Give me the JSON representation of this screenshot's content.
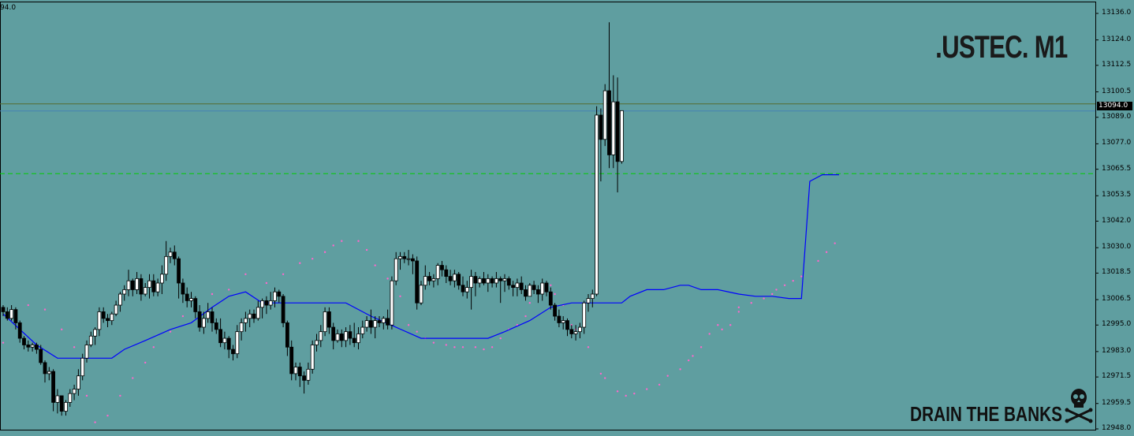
{
  "chart_data": {
    "type": "candlestick",
    "title": ".USTEC. M1",
    "symbol": ".USTEC",
    "timeframe": "M1",
    "top_left_label": "94.0",
    "current_price_label": "13094.0",
    "current_price": 13094.0,
    "green_dashed_level": 13063.5,
    "ylim": [
      12946,
      13141
    ],
    "y_ticks": [
      "13136.0",
      "13124.0",
      "13112.5",
      "13100.5",
      "13089.0",
      "13077.0",
      "13065.5",
      "13053.5",
      "13042.0",
      "13030.0",
      "13018.5",
      "13006.5",
      "12995.0",
      "12983.0",
      "12971.5",
      "12959.5",
      "12948.0"
    ],
    "indicators": [
      "parabolic-sar",
      "blue-line"
    ],
    "colors": {
      "background": "#5f9ea0",
      "bull_candle": "#ffffff",
      "bear_candle": "#000000",
      "sar_dots": "#ff66cc",
      "indicator_line": "#0000ff",
      "dashed_level": "#00cc00",
      "price_line": "#556b2f",
      "current_level": "#4682b4"
    },
    "candles": [
      [
        13003,
        13004,
        12999,
        13001
      ],
      [
        13001,
        13003,
        12997,
        12998
      ],
      [
        12998,
        13004,
        12997,
        13002
      ],
      [
        13002,
        13003,
        12993,
        12996
      ],
      [
        12996,
        12997,
        12987,
        12989
      ],
      [
        12989,
        12990,
        12984,
        12986
      ],
      [
        12986,
        12988,
        12983,
        12985
      ],
      [
        12985,
        12987,
        12983,
        12986
      ],
      [
        12986,
        12987,
        12982,
        12984
      ],
      [
        12984,
        12986,
        12977,
        12978
      ],
      [
        12978,
        12979,
        12969,
        12973
      ],
      [
        12973,
        12976,
        12970,
        12974
      ],
      [
        12974,
        12975,
        12956,
        12960
      ],
      [
        12960,
        12966,
        12955,
        12963
      ],
      [
        12963,
        12963,
        12954,
        12956
      ],
      [
        12956,
        12961,
        12954,
        12960
      ],
      [
        12960,
        12966,
        12958,
        12964
      ],
      [
        12964,
        12968,
        12961,
        12966
      ],
      [
        12966,
        12975,
        12963,
        12972
      ],
      [
        12972,
        12982,
        12970,
        12980
      ],
      [
        12980,
        12988,
        12978,
        12986
      ],
      [
        12986,
        12992,
        12985,
        12990
      ],
      [
        12990,
        12994,
        12986,
        12993
      ],
      [
        12993,
        13003,
        12990,
        13001
      ],
      [
        13001,
        13003,
        12996,
        12998
      ],
      [
        12998,
        13000,
        12994,
        12997
      ],
      [
        12997,
        13001,
        12995,
        13000
      ],
      [
        13000,
        13006,
        12999,
        13004
      ],
      [
        13004,
        13010,
        13001,
        13009
      ],
      [
        13009,
        13013,
        13006,
        13011
      ],
      [
        13011,
        13020,
        13008,
        13015
      ],
      [
        13015,
        13016,
        13008,
        13011
      ],
      [
        13011,
        13019,
        13009,
        13016
      ],
      [
        13016,
        13018,
        13006,
        13009
      ],
      [
        13009,
        13014,
        13008,
        13012
      ],
      [
        13012,
        13018,
        13007,
        13015
      ],
      [
        13015,
        13018,
        13008,
        13010
      ],
      [
        13010,
        13016,
        13008,
        13014
      ],
      [
        13014,
        13022,
        13009,
        13018
      ],
      [
        13018,
        13033,
        13015,
        13026
      ],
      [
        13026,
        13030,
        13023,
        13028
      ],
      [
        13028,
        13031,
        13022,
        13025
      ],
      [
        13025,
        13026,
        13007,
        13014
      ],
      [
        13014,
        13016,
        13005,
        13009
      ],
      [
        13009,
        13012,
        13003,
        13006
      ],
      [
        13006,
        13010,
        13003,
        13007
      ],
      [
        13007,
        13008,
        12998,
        13001
      ],
      [
        13001,
        13004,
        12992,
        12994
      ],
      [
        12994,
        13001,
        12991,
        12998
      ],
      [
        12998,
        13005,
        12996,
        13001
      ],
      [
        13001,
        13003,
        12992,
        12996
      ],
      [
        12996,
        12998,
        12991,
        12993
      ],
      [
        12993,
        12998,
        12985,
        12987
      ],
      [
        12987,
        12992,
        12984,
        12989
      ],
      [
        12989,
        12990,
        12980,
        12984
      ],
      [
        12984,
        12986,
        12979,
        12982
      ],
      [
        12982,
        12995,
        12980,
        12992
      ],
      [
        12992,
        12998,
        12988,
        12996
      ],
      [
        12996,
        13001,
        12992,
        12998
      ],
      [
        12998,
        13002,
        12994,
        13000
      ],
      [
        13000,
        13002,
        12996,
        12998
      ],
      [
        12998,
        13006,
        12997,
        13003
      ],
      [
        13003,
        13007,
        12998,
        13006
      ],
      [
        13006,
        13008,
        13000,
        13004
      ],
      [
        13004,
        13010,
        13002,
        13006
      ],
      [
        13006,
        13012,
        13003,
        13010
      ],
      [
        13010,
        13011,
        13005,
        13008
      ],
      [
        13008,
        13009,
        12994,
        12996
      ],
      [
        12996,
        12997,
        12981,
        12985
      ],
      [
        12985,
        12988,
        12970,
        12973
      ],
      [
        12973,
        12978,
        12970,
        12976
      ],
      [
        12976,
        12978,
        12967,
        12972
      ],
      [
        12972,
        12974,
        12964,
        12970
      ],
      [
        12970,
        12978,
        12968,
        12975
      ],
      [
        12975,
        12988,
        12973,
        12986
      ],
      [
        12986,
        12991,
        12983,
        12988
      ],
      [
        12988,
        12995,
        12985,
        12992
      ],
      [
        12992,
        13003,
        12990,
        13001
      ],
      [
        13001,
        13003,
        12991,
        12994
      ],
      [
        12994,
        12996,
        12984,
        12988
      ],
      [
        12988,
        12993,
        12987,
        12991
      ],
      [
        12991,
        12993,
        12985,
        12988
      ],
      [
        12988,
        12994,
        12985,
        12992
      ],
      [
        12992,
        12995,
        12986,
        12989
      ],
      [
        12989,
        12996,
        12985,
        12987
      ],
      [
        12987,
        12994,
        12984,
        12991
      ],
      [
        12991,
        12997,
        12989,
        12994
      ],
      [
        12994,
        12999,
        12992,
        12997
      ],
      [
        12997,
        13002,
        12991,
        12994
      ],
      [
        12994,
        12999,
        12989,
        12997
      ],
      [
        12997,
        12999,
        12994,
        12996
      ],
      [
        12996,
        12999,
        12993,
        12998
      ],
      [
        12998,
        13002,
        12993,
        12995
      ],
      [
        12995,
        13017,
        12993,
        13015
      ],
      [
        13015,
        13028,
        13013,
        13025
      ],
      [
        13025,
        13028,
        13020,
        13026
      ],
      [
        13026,
        13028,
        13023,
        13025
      ],
      [
        13025,
        13029,
        13022,
        13025
      ],
      [
        13025,
        13027,
        13018,
        13024
      ],
      [
        13024,
        13026,
        13002,
        13005
      ],
      [
        13005,
        13015,
        13004,
        13013
      ],
      [
        13013,
        13022,
        13011,
        13017
      ],
      [
        13017,
        13019,
        13013,
        13015
      ],
      [
        13015,
        13018,
        13012,
        13016
      ],
      [
        13016,
        13023,
        13013,
        13022
      ],
      [
        13022,
        13024,
        13017,
        13020
      ],
      [
        13020,
        13022,
        13014,
        13017
      ],
      [
        13017,
        13020,
        13013,
        13015
      ],
      [
        13015,
        13020,
        13012,
        13018
      ],
      [
        13018,
        13019,
        13011,
        13013
      ],
      [
        13013,
        13017,
        13008,
        13010
      ],
      [
        13010,
        13015,
        13007,
        13012
      ],
      [
        13012,
        13020,
        13002,
        13017
      ],
      [
        13017,
        13019,
        13008,
        13014
      ],
      [
        13014,
        13017,
        13012,
        13016
      ],
      [
        13016,
        13019,
        13013,
        13014
      ],
      [
        13014,
        13018,
        13010,
        13016
      ],
      [
        13016,
        13017,
        13012,
        13014
      ],
      [
        13014,
        13019,
        13012,
        13016
      ],
      [
        13016,
        13017,
        13005,
        13015
      ],
      [
        13015,
        13018,
        13010,
        13016
      ],
      [
        13016,
        13017,
        13011,
        13013
      ],
      [
        13013,
        13015,
        13008,
        13012
      ],
      [
        13012,
        13016,
        13008,
        13014
      ],
      [
        13014,
        13017,
        13009,
        13011
      ],
      [
        13011,
        13013,
        13006,
        13008
      ],
      [
        13008,
        13014,
        13008,
        13013
      ],
      [
        13013,
        13015,
        13009,
        13011
      ],
      [
        13011,
        13013,
        13005,
        13009
      ],
      [
        13009,
        13016,
        13006,
        13014
      ],
      [
        13014,
        13015,
        13008,
        13010
      ],
      [
        13010,
        13012,
        13002,
        13004
      ],
      [
        13004,
        13005,
        12997,
        12999
      ],
      [
        12999,
        13002,
        12994,
        12996
      ],
      [
        12996,
        12999,
        12993,
        12997
      ],
      [
        12997,
        12998,
        12990,
        12993
      ],
      [
        12993,
        12995,
        12989,
        12991
      ],
      [
        12991,
        12995,
        12988,
        12992
      ],
      [
        12992,
        12996,
        12989,
        12994
      ],
      [
        12994,
        13006,
        12991,
        13005
      ],
      [
        13005,
        13009,
        13001,
        13007
      ],
      [
        13007,
        13011,
        13003,
        13009
      ],
      [
        13009,
        13094,
        13008,
        13090
      ],
      [
        13090,
        13093,
        13060,
        13079
      ],
      [
        13079,
        13104,
        13076,
        13101
      ],
      [
        13101,
        13132,
        13066,
        13072
      ],
      [
        13072,
        13108,
        13066,
        13096
      ],
      [
        13096,
        13107,
        13055,
        13069
      ],
      [
        13069,
        13091,
        13068,
        13092
      ]
    ],
    "line_points": [
      [
        0,
        13000
      ],
      [
        8,
        12986
      ],
      [
        13,
        12980
      ],
      [
        26,
        12980
      ],
      [
        29,
        12984
      ],
      [
        34,
        12988
      ],
      [
        40,
        12993
      ],
      [
        45,
        12996
      ],
      [
        50,
        13003
      ],
      [
        54,
        13008
      ],
      [
        58,
        13010
      ],
      [
        62,
        13005
      ],
      [
        82,
        13005
      ],
      [
        88,
        12999
      ],
      [
        94,
        12994
      ],
      [
        100,
        12989
      ],
      [
        106,
        12989
      ],
      [
        116,
        12989
      ],
      [
        120,
        12992
      ],
      [
        126,
        12997
      ],
      [
        131,
        13003
      ],
      [
        136,
        13005
      ],
      [
        148,
        13005
      ],
      [
        150,
        13008
      ],
      [
        154,
        13011
      ],
      [
        158,
        13011
      ],
      [
        162,
        13013
      ],
      [
        164,
        13013
      ],
      [
        167,
        13011
      ],
      [
        171,
        13011
      ],
      [
        176,
        13009
      ],
      [
        180,
        13008
      ],
      [
        184,
        13008
      ],
      [
        188,
        13007
      ],
      [
        191,
        13007
      ],
      [
        193,
        13060
      ],
      [
        196,
        13063
      ],
      [
        200,
        13063
      ]
    ],
    "sar_points": [
      [
        0,
        12987
      ],
      [
        3,
        13000
      ],
      [
        6,
        13004
      ],
      [
        10,
        13002
      ],
      [
        14,
        12993
      ],
      [
        17,
        12985
      ],
      [
        20,
        12963
      ],
      [
        22,
        12951
      ],
      [
        25,
        12954
      ],
      [
        28,
        12963
      ],
      [
        31,
        12971
      ],
      [
        34,
        12978
      ],
      [
        36,
        12985
      ],
      [
        40,
        12992
      ],
      [
        43,
        12999
      ],
      [
        46,
        13005
      ],
      [
        50,
        13009
      ],
      [
        54,
        13011
      ],
      [
        58,
        13018
      ],
      [
        63,
        13014
      ],
      [
        67,
        13018
      ],
      [
        71,
        13023
      ],
      [
        74,
        13025
      ],
      [
        77,
        13028
      ],
      [
        79,
        13031
      ],
      [
        81,
        13033
      ],
      [
        85,
        13033
      ],
      [
        87,
        13029
      ],
      [
        89,
        13022
      ],
      [
        92,
        13016
      ],
      [
        95,
        13008
      ],
      [
        97,
        12995
      ],
      [
        99,
        12992
      ],
      [
        101,
        12989
      ],
      [
        103,
        12987
      ],
      [
        106,
        12986
      ],
      [
        108,
        12985
      ],
      [
        110,
        12985
      ],
      [
        113,
        12985
      ],
      [
        115,
        12984
      ],
      [
        117,
        12985
      ],
      [
        119,
        12989
      ],
      [
        121,
        12993
      ],
      [
        123,
        12995
      ],
      [
        125,
        12999
      ],
      [
        126,
        13005
      ],
      [
        129,
        13011
      ],
      [
        131,
        13013
      ],
      [
        132,
        13009
      ],
      [
        134,
        13004
      ],
      [
        136,
        12995
      ],
      [
        137,
        12993
      ],
      [
        140,
        12985
      ],
      [
        143,
        12973
      ],
      [
        144,
        12971
      ],
      [
        147,
        12965
      ],
      [
        149,
        12963
      ],
      [
        151,
        12964
      ],
      [
        154,
        12966
      ],
      [
        157,
        12968
      ],
      [
        159,
        12972
      ],
      [
        162,
        12975
      ],
      [
        164,
        12979
      ],
      [
        165,
        12981
      ],
      [
        167,
        12985
      ],
      [
        169,
        12991
      ],
      [
        171,
        12995
      ],
      [
        172,
        12993
      ],
      [
        174,
        12995
      ],
      [
        176,
        13001
      ],
      [
        176,
        13003
      ],
      [
        179,
        13005
      ],
      [
        182,
        13007
      ],
      [
        184,
        13009
      ],
      [
        185,
        13011
      ],
      [
        187,
        13013
      ],
      [
        189,
        13015
      ],
      [
        191,
        13017
      ],
      [
        195,
        13024
      ],
      [
        197,
        13028
      ],
      [
        199,
        13032
      ]
    ]
  },
  "watermark": {
    "text": "DRAIN THE BANKS",
    "logo": "skull-crossbones-icon"
  }
}
